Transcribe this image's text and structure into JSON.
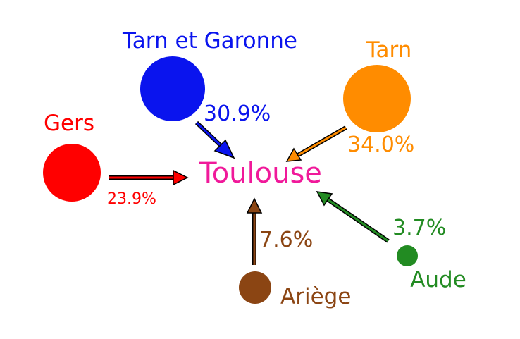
{
  "colors": {
    "toulouse": "#f0199a",
    "tarn_et_garonne": "#0a14ee",
    "tarn": "#ff8c00",
    "gers": "#ff0000",
    "ariege": "#8b4513",
    "aude": "#228b22"
  },
  "center": {
    "name": "Toulouse"
  },
  "sources": {
    "tarn_et_garonne": {
      "name": "Tarn et Garonne",
      "percent": "30.9%",
      "share": 30.9
    },
    "tarn": {
      "name": "Tarn",
      "percent": "34.0%",
      "share": 34.0
    },
    "gers": {
      "name": "Gers",
      "percent": "23.9%",
      "share": 23.9
    },
    "ariege": {
      "name": "Ariège",
      "percent": "7.6%",
      "share": 7.6
    },
    "aude": {
      "name": "Aude",
      "percent": "3.7%",
      "share": 3.7
    }
  }
}
